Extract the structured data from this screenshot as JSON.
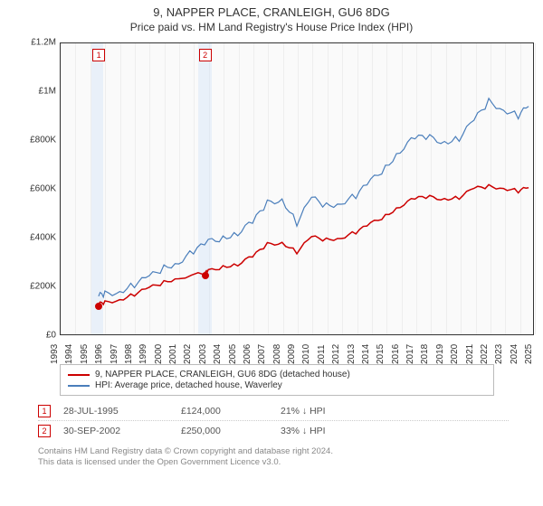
{
  "title": "9, NAPPER PLACE, CRANLEIGH, GU6 8DG",
  "subtitle": "Price paid vs. HM Land Registry's House Price Index (HPI)",
  "chart": {
    "type": "line",
    "background_color": "#fafafa",
    "border_color": "#333333",
    "grid_color": "#eeeeee",
    "xlim": [
      1993,
      2025
    ],
    "ylim": [
      0,
      1200000
    ],
    "ytick_step": 200000,
    "ytick_labels": [
      "£0",
      "£200K",
      "£400K",
      "£600K",
      "£800K",
      "£1M",
      "£1.2M"
    ],
    "xtick_years": [
      1993,
      1994,
      1995,
      1996,
      1997,
      1998,
      1999,
      2000,
      2001,
      2002,
      2003,
      2004,
      2005,
      2006,
      2007,
      2008,
      2009,
      2010,
      2011,
      2012,
      2013,
      2014,
      2015,
      2016,
      2017,
      2018,
      2019,
      2020,
      2021,
      2022,
      2023,
      2024,
      2025
    ],
    "label_fontsize": 10,
    "band_color": "rgba(200,220,245,0.35)",
    "bands": [
      {
        "from": 1995.1,
        "to": 1995.9
      },
      {
        "from": 2002.3,
        "to": 2003.2
      }
    ],
    "series": [
      {
        "name": "property",
        "color": "#cc0000",
        "line_width": 1.5,
        "data": [
          [
            1995.57,
            124000
          ],
          [
            1996,
            130000
          ],
          [
            1997,
            145000
          ],
          [
            1998,
            165000
          ],
          [
            1999,
            190000
          ],
          [
            2000,
            215000
          ],
          [
            2001,
            235000
          ],
          [
            2002.75,
            250000
          ],
          [
            2003,
            260000
          ],
          [
            2004,
            280000
          ],
          [
            2005,
            290000
          ],
          [
            2006,
            320000
          ],
          [
            2007,
            370000
          ],
          [
            2008,
            380000
          ],
          [
            2009,
            340000
          ],
          [
            2010,
            400000
          ],
          [
            2011,
            390000
          ],
          [
            2012,
            400000
          ],
          [
            2013,
            420000
          ],
          [
            2014,
            455000
          ],
          [
            2015,
            490000
          ],
          [
            2016,
            530000
          ],
          [
            2017,
            560000
          ],
          [
            2018,
            565000
          ],
          [
            2019,
            560000
          ],
          [
            2020,
            565000
          ],
          [
            2021,
            600000
          ],
          [
            2022,
            610000
          ],
          [
            2023,
            605000
          ],
          [
            2024,
            590000
          ],
          [
            2024.7,
            605000
          ]
        ]
      },
      {
        "name": "hpi",
        "color": "#4a7ebb",
        "line_width": 1.2,
        "data": [
          [
            1995.57,
            157000
          ],
          [
            1996,
            165000
          ],
          [
            1997,
            180000
          ],
          [
            1998,
            205000
          ],
          [
            1999,
            235000
          ],
          [
            2000,
            275000
          ],
          [
            2001,
            300000
          ],
          [
            2002,
            340000
          ],
          [
            2003,
            380000
          ],
          [
            2004,
            400000
          ],
          [
            2005,
            420000
          ],
          [
            2006,
            460000
          ],
          [
            2007,
            540000
          ],
          [
            2008,
            560000
          ],
          [
            2009,
            460000
          ],
          [
            2010,
            560000
          ],
          [
            2011,
            530000
          ],
          [
            2012,
            545000
          ],
          [
            2013,
            570000
          ],
          [
            2014,
            630000
          ],
          [
            2015,
            690000
          ],
          [
            2016,
            760000
          ],
          [
            2017,
            810000
          ],
          [
            2018,
            810000
          ],
          [
            2019,
            795000
          ],
          [
            2020,
            810000
          ],
          [
            2021,
            880000
          ],
          [
            2022,
            960000
          ],
          [
            2023,
            930000
          ],
          [
            2024,
            900000
          ],
          [
            2024.7,
            940000
          ]
        ]
      }
    ],
    "markers": [
      {
        "id": "1",
        "x": 1995.57,
        "y": 124000
      },
      {
        "id": "2",
        "x": 2002.75,
        "y": 250000
      }
    ]
  },
  "legend": {
    "items": [
      {
        "color": "#cc0000",
        "label": "9, NAPPER PLACE, CRANLEIGH, GU6 8DG (detached house)"
      },
      {
        "color": "#4a7ebb",
        "label": "HPI: Average price, detached house, Waverley"
      }
    ]
  },
  "sales": [
    {
      "id": "1",
      "date": "28-JUL-1995",
      "price": "£124,000",
      "delta": "21% ↓ HPI"
    },
    {
      "id": "2",
      "date": "30-SEP-2002",
      "price": "£250,000",
      "delta": "33% ↓ HPI"
    }
  ],
  "footer_line1": "Contains HM Land Registry data © Crown copyright and database right 2024.",
  "footer_line2": "This data is licensed under the Open Government Licence v3.0."
}
